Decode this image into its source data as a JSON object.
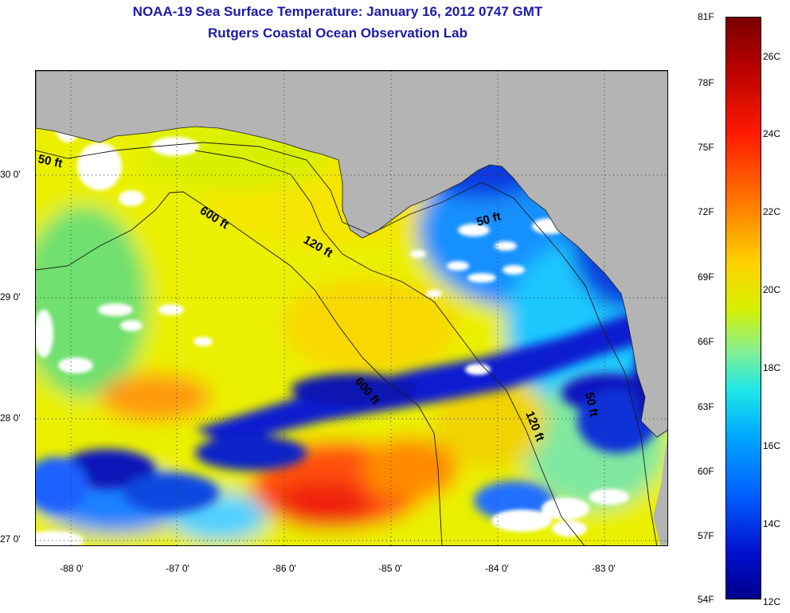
{
  "title": {
    "line1": "NOAA-19 Sea Surface Temperature:  January 16, 2012 0747 GMT",
    "line2": "Rutgers Coastal Ocean Observation Lab"
  },
  "map": {
    "latitude_labels": [
      "30 0'",
      "29 0'",
      "28 0'",
      "27 0'"
    ],
    "longitude_labels": [
      "-88 0'",
      "-87 0'",
      "-86 0'",
      "-85 0'",
      "-84 0'",
      "-83 0'"
    ],
    "contour_labels": [
      "50 ft",
      "600 ft",
      "120 ft",
      "50 ft",
      "600 ft",
      "120 ft",
      "50 ft"
    ],
    "colors": {
      "land": "#b4b4b4",
      "cloud": "#ffffff"
    }
  },
  "colorbar": {
    "fahrenheit_labels": [
      "81F",
      "78F",
      "75F",
      "72F",
      "69F",
      "66F",
      "63F",
      "60F",
      "57F",
      "54F"
    ],
    "celsius_labels": [
      "26C",
      "24C",
      "22C",
      "20C",
      "18C",
      "16C",
      "14C",
      "12C"
    ]
  }
}
